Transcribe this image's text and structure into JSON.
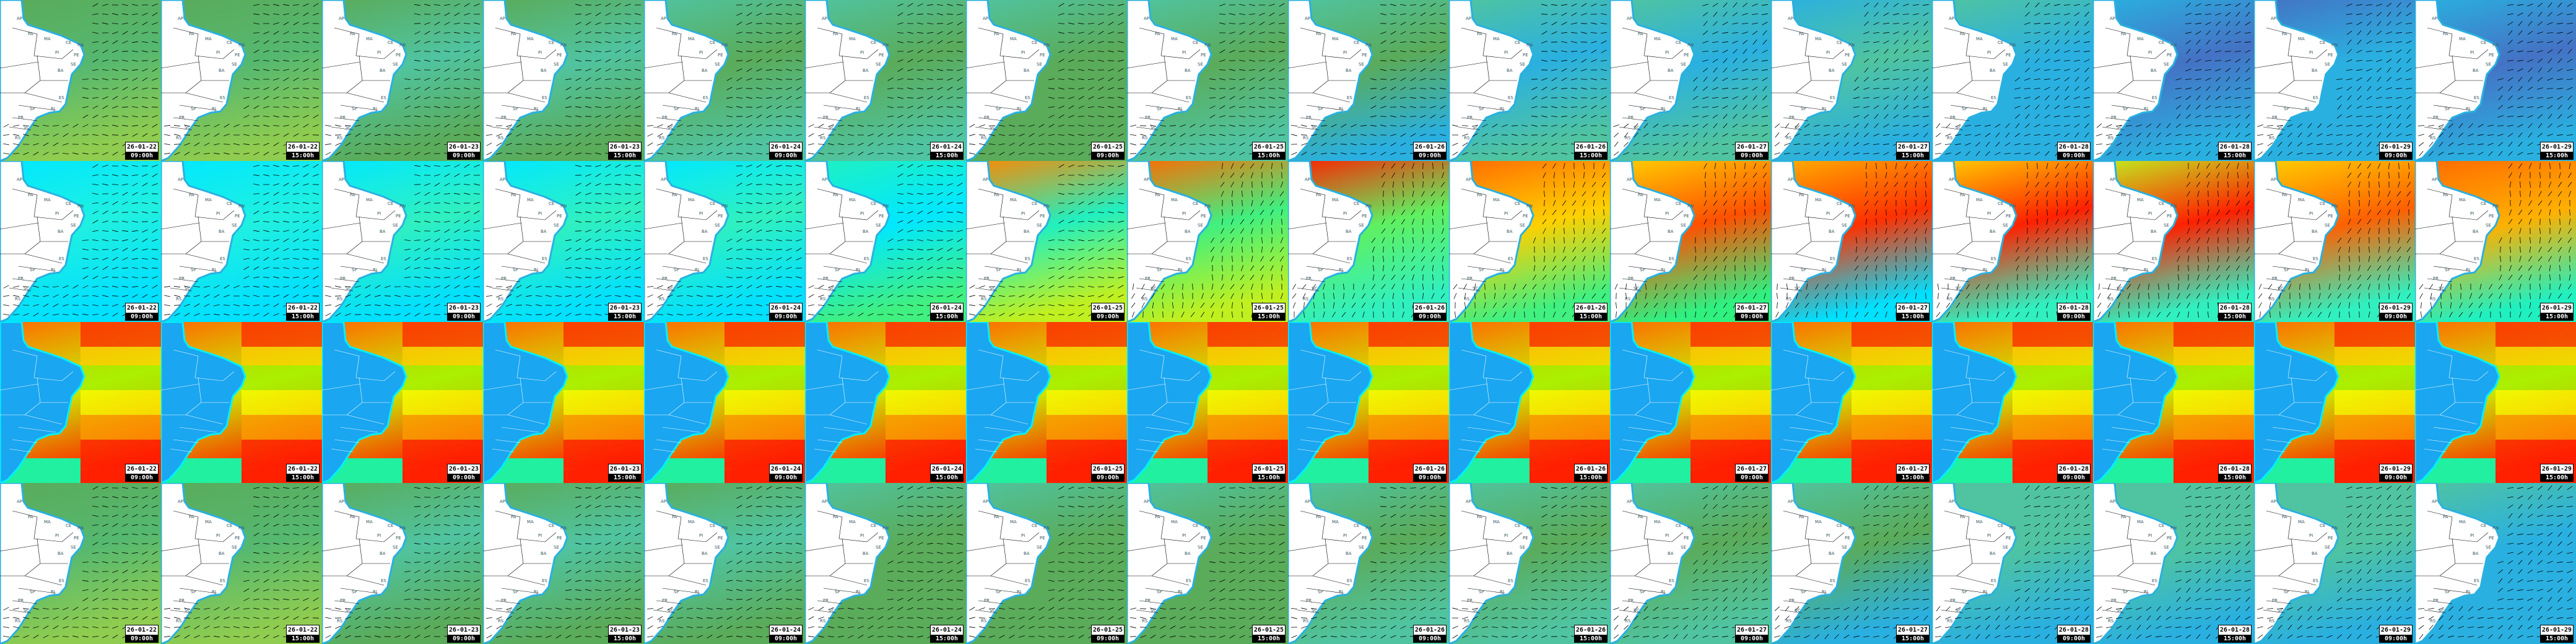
{
  "times": [
    {
      "date": "26-01-22",
      "time": "09:00h"
    },
    {
      "date": "26-01-22",
      "time": "15:00h"
    },
    {
      "date": "26-01-23",
      "time": "09:00h"
    },
    {
      "date": "26-01-23",
      "time": "15:00h"
    },
    {
      "date": "26-01-24",
      "time": "09:00h"
    },
    {
      "date": "26-01-24",
      "time": "15:00h"
    },
    {
      "date": "26-01-25",
      "time": "09:00h"
    },
    {
      "date": "26-01-25",
      "time": "15:00h"
    },
    {
      "date": "26-01-26",
      "time": "09:00h"
    },
    {
      "date": "26-01-26",
      "time": "15:00h"
    },
    {
      "date": "26-01-27",
      "time": "09:00h"
    },
    {
      "date": "26-01-27",
      "time": "15:00h"
    },
    {
      "date": "26-01-28",
      "time": "09:00h"
    },
    {
      "date": "26-01-28",
      "time": "15:00h"
    },
    {
      "date": "26-01-29",
      "time": "09:00h"
    },
    {
      "date": "26-01-29",
      "time": "15:00h"
    }
  ],
  "states": [
    "AP",
    "PA",
    "MA",
    "CE",
    "RN",
    "PI",
    "PE",
    "SE",
    "BA",
    "ES",
    "RJ",
    "SP",
    "PR",
    "SC",
    "RS"
  ],
  "rows": [
    {
      "kind": "wind",
      "land": "#ffffff",
      "show_states": true,
      "palettes": [
        [
          "#5aab5a",
          "#55b870",
          "#8fcc50"
        ],
        [
          "#5aab5a",
          "#55b870",
          "#8fcc50"
        ],
        [
          "#5aab5a",
          "#50c4a0",
          "#5aab5a"
        ],
        [
          "#5aab5a",
          "#50c4a0",
          "#5aab5a"
        ],
        [
          "#50c4a0",
          "#5aab5a",
          "#50c4a0"
        ],
        [
          "#50c4a0",
          "#5aab5a",
          "#50c4a0"
        ],
        [
          "#50c4a0",
          "#5aab5a",
          "#5aab5a"
        ],
        [
          "#50c4a0",
          "#5aab5a",
          "#50c4a0"
        ],
        [
          "#50c4a0",
          "#5aab5a",
          "#2ab0e0"
        ],
        [
          "#50c4a0",
          "#2ab0e0",
          "#50c4a0"
        ],
        [
          "#50c4a0",
          "#2ab0e0",
          "#50c4a0"
        ],
        [
          "#2ab0e0",
          "#50c4a0",
          "#2ab0e0"
        ],
        [
          "#50c4a0",
          "#2ab0e0",
          "#2ab0e0"
        ],
        [
          "#2ab0e0",
          "#4472c4",
          "#2ab0e0"
        ],
        [
          "#4472c4",
          "#2ab0e0",
          "#2ab0e0"
        ],
        [
          "#2ab0e0",
          "#4472c4",
          "#2ab0e0"
        ]
      ]
    },
    {
      "kind": "wind",
      "land": "#ffffff",
      "show_states": true,
      "palettes": [
        [
          "#00e8ff",
          "#20f0e0",
          "#00e0ff"
        ],
        [
          "#00e8ff",
          "#20f0e0",
          "#00e0ff"
        ],
        [
          "#00e8ff",
          "#30f0c0",
          "#00e0ff"
        ],
        [
          "#00e8ff",
          "#30f0c0",
          "#00e0ff"
        ],
        [
          "#00e8ff",
          "#30f0c0",
          "#00e0ff"
        ],
        [
          "#20f0c0",
          "#00e8ff",
          "#40f080"
        ],
        [
          "#ff8800",
          "#20f0c0",
          "#c0f020"
        ],
        [
          "#ff6a00",
          "#40f080",
          "#c0f020"
        ],
        [
          "#ff2000",
          "#60f060",
          "#30f0c0"
        ],
        [
          "#ff6a00",
          "#ffd000",
          "#40f080"
        ],
        [
          "#ffd000",
          "#ff5000",
          "#30f080"
        ],
        [
          "#ffb000",
          "#ff3000",
          "#00e0ff"
        ],
        [
          "#ffd000",
          "#ff2000",
          "#30f0c0"
        ],
        [
          "#c0f020",
          "#ff2000",
          "#30f0c0"
        ],
        [
          "#ffd000",
          "#ff6000",
          "#30f0c0"
        ],
        [
          "#ff6a00",
          "#ffb000",
          "#20f0c0"
        ]
      ]
    },
    {
      "kind": "wave",
      "land": "#1aa6f0",
      "show_states": false,
      "palettes": [
        [
          "#ff6a00",
          "#c8f000",
          "#ff2000"
        ],
        [
          "#ff6a00",
          "#c8f000",
          "#ff2000"
        ],
        [
          "#ff6a00",
          "#c8f000",
          "#ff2000"
        ],
        [
          "#ff6a00",
          "#c8f000",
          "#ff2000"
        ],
        [
          "#ff6a00",
          "#c8f000",
          "#ff2000"
        ],
        [
          "#ff6a00",
          "#c8f000",
          "#ff2000"
        ],
        [
          "#ff6a00",
          "#c8f000",
          "#ff2000"
        ],
        [
          "#ff6a00",
          "#c8f000",
          "#ff2000"
        ],
        [
          "#ff6a00",
          "#c8f000",
          "#ff2000"
        ],
        [
          "#ff6a00",
          "#c8f000",
          "#ff2000"
        ],
        [
          "#ff6a00",
          "#c8f000",
          "#ff2000"
        ],
        [
          "#ff6a00",
          "#c8f000",
          "#ff2000"
        ],
        [
          "#ff6a00",
          "#c8f000",
          "#ff2000"
        ],
        [
          "#ff6a00",
          "#c8f000",
          "#ff2000"
        ],
        [
          "#ff6a00",
          "#c8f000",
          "#ff2000"
        ],
        [
          "#ff6a00",
          "#c8f000",
          "#ff2000"
        ]
      ]
    },
    {
      "kind": "wind",
      "land": "#ffffff",
      "show_states": true,
      "palettes": [
        [
          "#5aab5a",
          "#55b870",
          "#8fcc50"
        ],
        [
          "#5aab5a",
          "#55b870",
          "#8fcc50"
        ],
        [
          "#5aab5a",
          "#50c4a0",
          "#5aab5a"
        ],
        [
          "#5aab5a",
          "#50c4a0",
          "#5aab5a"
        ],
        [
          "#5aab5a",
          "#50c4a0",
          "#5aab5a"
        ],
        [
          "#50c4a0",
          "#5aab5a",
          "#5aab5a"
        ],
        [
          "#50c4a0",
          "#5aab5a",
          "#5aab5a"
        ],
        [
          "#50c4a0",
          "#5aab5a",
          "#5aab5a"
        ],
        [
          "#50c4a0",
          "#5aab5a",
          "#50c4a0"
        ],
        [
          "#50c4a0",
          "#5aab5a",
          "#50c4a0"
        ],
        [
          "#50c4a0",
          "#5aab5a",
          "#50c4a0"
        ],
        [
          "#50c4a0",
          "#5aab5a",
          "#2ab0e0"
        ],
        [
          "#50c4a0",
          "#50c4a0",
          "#2ab0e0"
        ],
        [
          "#50c4a0",
          "#50c4a0",
          "#2ab0e0"
        ],
        [
          "#50c4a0",
          "#50c4a0",
          "#2ab0e0"
        ],
        [
          "#50c4a0",
          "#2ab0e0",
          "#2ab0e0"
        ]
      ]
    }
  ]
}
